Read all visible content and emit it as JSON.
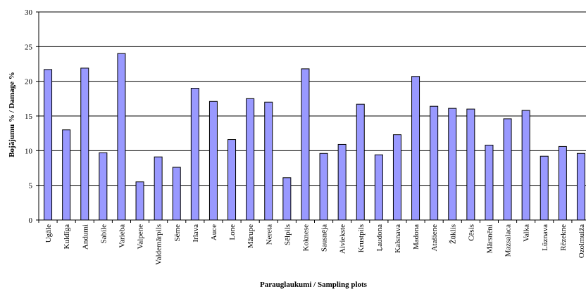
{
  "chart_data": {
    "type": "bar",
    "xlabel": "Parauglaukumi / Sampling plots",
    "ylabel": "Bojājumu % / Damage %",
    "ylim": [
      0,
      30
    ],
    "yticks": [
      0,
      5,
      10,
      15,
      20,
      25,
      30
    ],
    "grid": true,
    "bar_color": "#9999ff",
    "categories": [
      "Ugāle",
      "Kuldīga",
      "Andumi",
      "Sabile",
      "Varieba",
      "Valpene",
      "Valdemārpils",
      "Sēme",
      "Irlava",
      "Auce",
      "Lone",
      "Mārupe",
      "Nereta",
      "Sēlpils",
      "Koknese",
      "Sausnēja",
      "Aiviekste",
      "Krustpils",
      "Ļaudona",
      "Kalsnava",
      "Madona",
      "Atašiene",
      "Žūklis",
      "Cēsis",
      "Mārsnēni",
      "Mazsalaca",
      "Valka",
      "Lūznava",
      "Rēzekne",
      "Ozolmuiža"
    ],
    "values": [
      21.7,
      13.0,
      21.9,
      9.7,
      24.0,
      5.5,
      9.1,
      7.6,
      19.0,
      17.1,
      11.6,
      17.5,
      17.0,
      6.1,
      21.8,
      9.6,
      10.9,
      16.7,
      9.4,
      12.3,
      20.7,
      16.4,
      16.1,
      16.0,
      10.8,
      14.6,
      15.8,
      9.2,
      10.6,
      9.6
    ]
  }
}
